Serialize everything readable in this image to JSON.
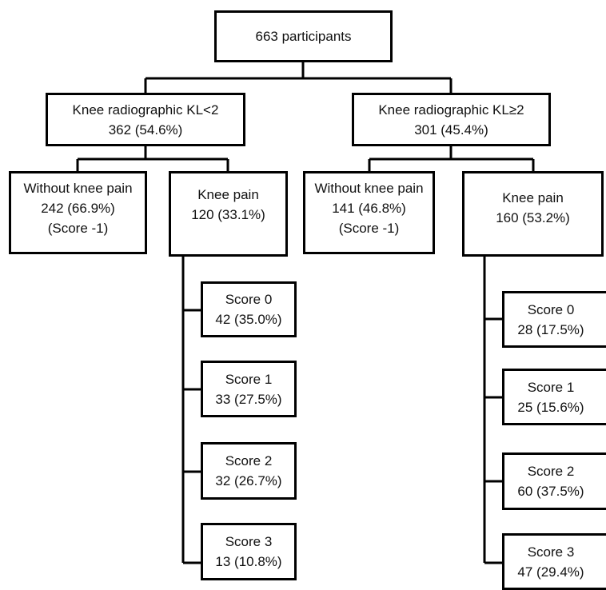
{
  "root": {
    "line1": "663 participants"
  },
  "kl_lt2": {
    "line1": "Knee radiographic KL<2",
    "line2": "362 (54.6%)"
  },
  "kl_ge2": {
    "line1": "Knee radiographic KL≥2",
    "line2": "301 (45.4%)"
  },
  "lt2_no_pain": {
    "line1": "Without knee pain",
    "line2": "242 (66.9%)",
    "line3": "(Score -1)"
  },
  "lt2_pain": {
    "line1": "Knee pain",
    "line2": "120 (33.1%)"
  },
  "ge2_no_pain": {
    "line1": "Without knee pain",
    "line2": "141 (46.8%)",
    "line3": "(Score -1)"
  },
  "ge2_pain": {
    "line1": "Knee pain",
    "line2": "160 (53.2%)"
  },
  "lt2_scores": [
    {
      "label": "Score 0",
      "value": "42 (35.0%)"
    },
    {
      "label": "Score 1",
      "value": "33 (27.5%)"
    },
    {
      "label": "Score 2",
      "value": "32 (26.7%)"
    },
    {
      "label": "Score 3",
      "value": "13 (10.8%)"
    }
  ],
  "ge2_scores": [
    {
      "label": "Score 0",
      "value": "28 (17.5%)"
    },
    {
      "label": "Score 1",
      "value": "25 (15.6%)"
    },
    {
      "label": "Score 2",
      "value": "60 (37.5%)"
    },
    {
      "label": "Score 3",
      "value": "47 (29.4%)"
    }
  ]
}
